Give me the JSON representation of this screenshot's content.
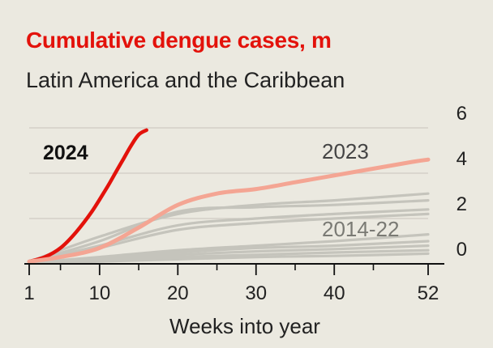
{
  "chart_data": {
    "type": "line",
    "title": "Cumulative dengue cases, m",
    "subtitle": "Latin America and the Caribbean",
    "xlabel": "Weeks into year",
    "ylabel": "",
    "xlim": [
      1,
      52
    ],
    "ylim": [
      0,
      6
    ],
    "x_ticks": [
      1,
      10,
      20,
      30,
      40,
      52
    ],
    "y_ticks": [
      0,
      2,
      4,
      6
    ],
    "series": [
      {
        "name": "2024",
        "label": "2024",
        "color": "#e3120b",
        "x": [
          1,
          3,
          5,
          7,
          9,
          11,
          12,
          13,
          14,
          15,
          16
        ],
        "y": [
          0.1,
          0.3,
          0.7,
          1.4,
          2.3,
          3.4,
          4.0,
          4.6,
          5.2,
          5.7,
          5.9
        ]
      },
      {
        "name": "2023",
        "label": "2023",
        "color": "#f4a593",
        "x": [
          1,
          5,
          10,
          15,
          20,
          25,
          30,
          35,
          40,
          45,
          50,
          52
        ],
        "y": [
          0.1,
          0.3,
          0.7,
          1.6,
          2.6,
          3.1,
          3.3,
          3.6,
          3.9,
          4.2,
          4.5,
          4.6
        ]
      },
      {
        "name": "2014-22 (a)",
        "label": "2014-22",
        "color": "#c5c4bc",
        "x": [
          1,
          10,
          20,
          30,
          40,
          52
        ],
        "y": [
          0.1,
          1.2,
          2.2,
          2.6,
          2.8,
          3.1
        ]
      },
      {
        "name": "2014-22 (b)",
        "color": "#c5c4bc",
        "x": [
          1,
          10,
          20,
          30,
          40,
          52
        ],
        "y": [
          0.1,
          1.0,
          2.3,
          2.5,
          2.6,
          2.8
        ]
      },
      {
        "name": "2014-22 (c)",
        "color": "#c5c4bc",
        "x": [
          1,
          10,
          20,
          30,
          40,
          52
        ],
        "y": [
          0.1,
          0.8,
          1.7,
          2.0,
          2.2,
          2.4
        ]
      },
      {
        "name": "2014-22 (d)",
        "color": "#c5c4bc",
        "x": [
          1,
          10,
          20,
          30,
          40,
          52
        ],
        "y": [
          0.05,
          0.7,
          1.5,
          1.8,
          2.0,
          2.2
        ]
      },
      {
        "name": "2014-22 (e)",
        "color": "#c5c4bc",
        "x": [
          1,
          10,
          20,
          30,
          40,
          52
        ],
        "y": [
          0.05,
          0.3,
          0.6,
          0.8,
          1.0,
          1.3
        ]
      },
      {
        "name": "2014-22 (f)",
        "color": "#c5c4bc",
        "x": [
          1,
          10,
          20,
          30,
          40,
          52
        ],
        "y": [
          0.05,
          0.25,
          0.5,
          0.7,
          0.8,
          1.0
        ]
      },
      {
        "name": "2014-22 (g)",
        "color": "#c5c4bc",
        "x": [
          1,
          10,
          20,
          30,
          40,
          52
        ],
        "y": [
          0.05,
          0.2,
          0.4,
          0.55,
          0.65,
          0.8
        ]
      },
      {
        "name": "2014-22 (h)",
        "color": "#c5c4bc",
        "x": [
          1,
          10,
          20,
          30,
          40,
          52
        ],
        "y": [
          0.02,
          0.15,
          0.3,
          0.4,
          0.5,
          0.6
        ]
      },
      {
        "name": "2014-22 (i)",
        "color": "#c5c4bc",
        "x": [
          1,
          10,
          20,
          30,
          40,
          52
        ],
        "y": [
          0.02,
          0.1,
          0.2,
          0.3,
          0.35,
          0.45
        ]
      }
    ]
  }
}
